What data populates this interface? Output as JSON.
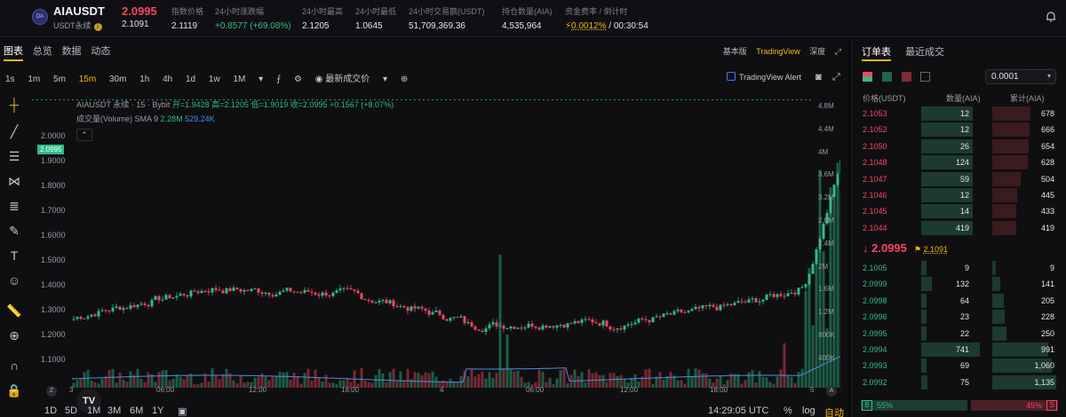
{
  "header": {
    "symbol": "AIAUSDT",
    "symbol_sub": "USDT永续",
    "logo_text": "DA",
    "last_price": "2.0995",
    "last_sub": "2.1091",
    "stats": [
      {
        "label": "指数价格",
        "value": "2.1119"
      },
      {
        "label": "24小时涨跌幅",
        "value": "+0.8577 (+69.08%)"
      },
      {
        "label": "24小时最高",
        "value": "2.1205"
      },
      {
        "label": "24小时最低",
        "value": "1.0645"
      },
      {
        "label": "24小时交易额(USDT)",
        "value": "51,709,369.36"
      },
      {
        "label": "持仓数量(AIA)",
        "value": "4,535,964"
      },
      {
        "label": "资金费率 / 倒计时",
        "rate": "0.0012%",
        "countdown": "/ 00:30:54"
      }
    ]
  },
  "main": {
    "tabs": [
      "图表",
      "总览",
      "数据",
      "动态"
    ],
    "views": [
      "基本版",
      "TradingView",
      "深度"
    ],
    "intervals": [
      "1s",
      "1m",
      "5m",
      "15m",
      "30m",
      "1h",
      "4h",
      "1d",
      "1w",
      "1M"
    ],
    "active_interval": "15m",
    "price_source": "最新成交价",
    "alert": "TradingView Alert",
    "legend": {
      "title": "AIAUSDT 永续 · 15 · Bybit",
      "ohlc": "开=1.9428 高=2.1205 低=1.9019 收=2.0995 +0.1567 (+8.07%)"
    },
    "volume_legend": {
      "label": "成交量(Volume) SMA 9",
      "v1": "2.28M",
      "v2": "529.24K"
    },
    "price_tag": "2.0995",
    "yaxis": [
      "2.0000",
      "1.9000",
      "1.8000",
      "1.7000",
      "1.6000",
      "1.5000",
      "1.4000",
      "1.3000",
      "1.2000",
      "1.1000"
    ],
    "vol_axis": [
      "4.8M",
      "4.4M",
      "4M",
      "3.6M",
      "3.2M",
      "2.8M",
      "2.4M",
      "2M",
      "1.6M",
      "1.2M",
      "800K",
      "400K"
    ],
    "xaxis": [
      "3",
      "06:00",
      "12:00",
      "18:00",
      "4",
      "06:00",
      "12:00",
      "18:00",
      "5"
    ],
    "bottom": {
      "ranges": [
        "1D",
        "5D",
        "1M",
        "3M",
        "6M",
        "1Y"
      ],
      "time": "14:29:05 UTC",
      "pct": "%",
      "log": "log",
      "auto": "自动"
    },
    "colors": {
      "up": "#2ebd85",
      "down": "#f6465d",
      "accent": "#f0b90b"
    }
  },
  "orderbook": {
    "tabs": [
      "订单表",
      "最近成交"
    ],
    "precision": "0.0001",
    "headers": {
      "price": "价格(USDT)",
      "qty": "数量(AIA)",
      "cum": "累计(AIA)"
    },
    "asks": [
      {
        "price": "2.1053",
        "qty": "12",
        "cum": "678"
      },
      {
        "price": "2.1052",
        "qty": "12",
        "cum": "666"
      },
      {
        "price": "2.1050",
        "qty": "26",
        "cum": "654"
      },
      {
        "price": "2.1048",
        "qty": "124",
        "cum": "628"
      },
      {
        "price": "2.1047",
        "qty": "59",
        "cum": "504"
      },
      {
        "price": "2.1046",
        "qty": "12",
        "cum": "445"
      },
      {
        "price": "2.1045",
        "qty": "14",
        "cum": "433"
      },
      {
        "price": "2.1044",
        "qty": "419",
        "cum": "419"
      }
    ],
    "mid_price": "2.0995",
    "mark_price": "2.1091",
    "bids": [
      {
        "price": "2.1005",
        "qty": "9",
        "cum": "9"
      },
      {
        "price": "2.0999",
        "qty": "132",
        "cum": "141"
      },
      {
        "price": "2.0998",
        "qty": "64",
        "cum": "205"
      },
      {
        "price": "2.0996",
        "qty": "23",
        "cum": "228"
      },
      {
        "price": "2.0995",
        "qty": "22",
        "cum": "250"
      },
      {
        "price": "2.0994",
        "qty": "741",
        "cum": "991"
      },
      {
        "price": "2.0993",
        "qty": "69",
        "cum": "1,060"
      },
      {
        "price": "2.0992",
        "qty": "75",
        "cum": "1,135"
      }
    ],
    "buy_ratio": "55%",
    "sell_ratio": "45%",
    "buy_label": "B",
    "sell_label": "S"
  }
}
